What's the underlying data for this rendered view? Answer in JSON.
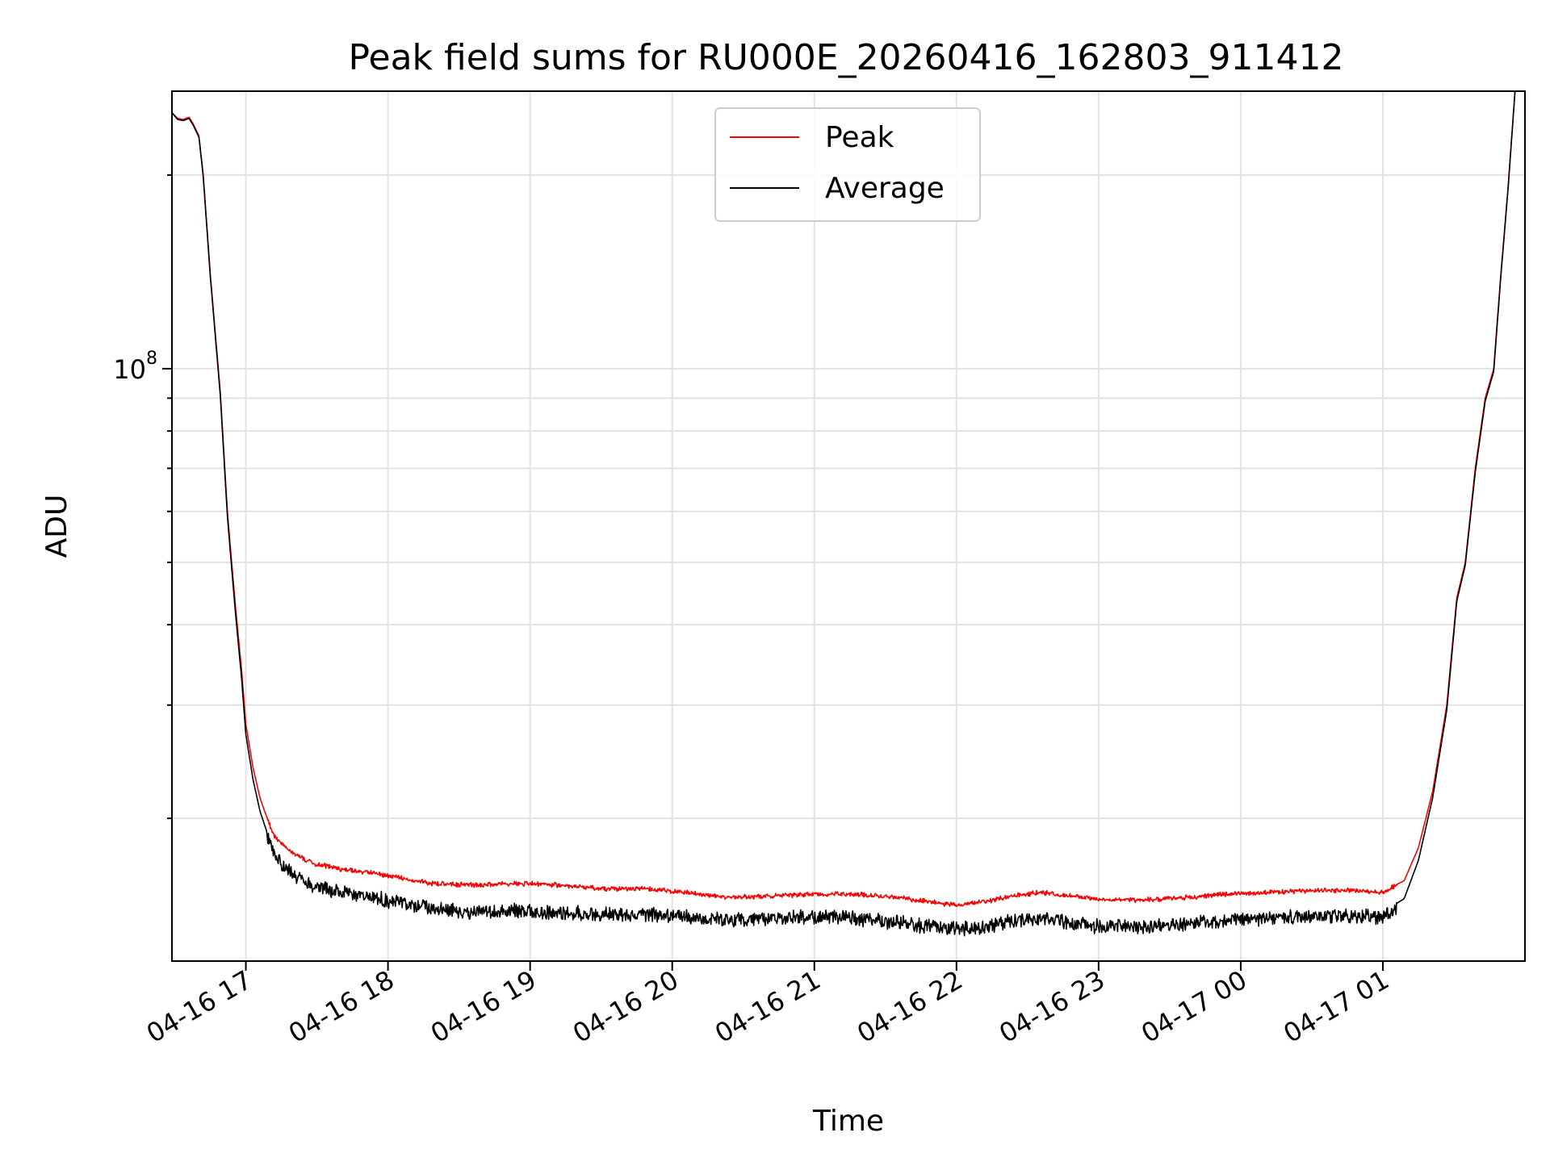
{
  "chart_data": {
    "type": "line",
    "title": "Peak field sums for RU000E_20260416_162803_911412",
    "xlabel": "Time",
    "ylabel": "ADU",
    "yscale": "log",
    "grid": true,
    "grid_minor": true,
    "legend_placement": "top-center",
    "x_tick_labels": [
      "04-16 17",
      "04-16 18",
      "04-16 19",
      "04-16 20",
      "04-16 21",
      "04-16 22",
      "04-16 23",
      "04-17 00",
      "04-17 01"
    ],
    "x_tick_hours": [
      17,
      18,
      19,
      20,
      21,
      22,
      23,
      24,
      25
    ],
    "xlim_hours": [
      16.48,
      26.0
    ],
    "ylim": [
      12000000,
      270000000
    ],
    "y_tick_label": {
      "base": "10",
      "exp": "8",
      "value": 100000000
    },
    "series": [
      {
        "name": "Peak",
        "color": "#ff0000",
        "x_hours": [
          16.48,
          16.52,
          16.56,
          16.6,
          16.63,
          16.67,
          16.7,
          16.75,
          16.82,
          16.87,
          16.9,
          16.93,
          16.97,
          17.0,
          17.05,
          17.1,
          17.15,
          17.2,
          17.3,
          17.4,
          17.5,
          17.7,
          17.9,
          18.1,
          18.3,
          18.6,
          18.9,
          19.2,
          19.5,
          19.8,
          20.1,
          20.4,
          20.7,
          21.0,
          21.3,
          21.6,
          21.8,
          22.0,
          22.2,
          22.4,
          22.6,
          22.8,
          23.0,
          23.3,
          23.6,
          23.9,
          24.2,
          24.5,
          24.8,
          25.0,
          25.15,
          25.25,
          25.35,
          25.45,
          25.52,
          25.58,
          25.65,
          25.72,
          25.78,
          25.83,
          25.88,
          25.93
        ],
        "values": [
          250000000,
          245000000,
          244000000,
          246000000,
          240000000,
          230000000,
          200000000,
          140000000,
          92000000,
          60000000,
          50000000,
          42000000,
          34000000,
          28000000,
          24000000,
          21500000,
          20000000,
          18800000,
          17900000,
          17400000,
          17000000,
          16700000,
          16500000,
          16200000,
          15900000,
          15800000,
          15900000,
          15800000,
          15600000,
          15600000,
          15400000,
          15100000,
          15200000,
          15300000,
          15300000,
          15100000,
          14900000,
          14700000,
          14900000,
          15200000,
          15400000,
          15200000,
          15000000,
          15000000,
          15100000,
          15300000,
          15400000,
          15500000,
          15500000,
          15400000,
          16000000,
          18000000,
          22000000,
          30000000,
          44000000,
          50000000,
          70000000,
          90000000,
          100000000,
          140000000,
          190000000,
          270000000
        ]
      },
      {
        "name": "Average",
        "color": "#000000",
        "x_hours": [
          16.48,
          16.52,
          16.56,
          16.6,
          16.63,
          16.67,
          16.7,
          16.75,
          16.82,
          16.87,
          16.9,
          16.93,
          16.97,
          17.0,
          17.05,
          17.1,
          17.15,
          17.2,
          17.3,
          17.4,
          17.5,
          17.7,
          17.9,
          18.1,
          18.3,
          18.6,
          18.9,
          19.2,
          19.5,
          19.8,
          20.1,
          20.4,
          20.7,
          21.0,
          21.3,
          21.6,
          21.8,
          22.0,
          22.2,
          22.4,
          22.6,
          22.8,
          23.0,
          23.3,
          23.6,
          23.9,
          24.2,
          24.5,
          24.8,
          25.0,
          25.15,
          25.25,
          25.35,
          25.45,
          25.52,
          25.58,
          25.65,
          25.72,
          25.78,
          25.83,
          25.88,
          25.93
        ],
        "values": [
          250000000,
          244000000,
          243000000,
          245000000,
          239000000,
          229000000,
          199000000,
          139000000,
          91000000,
          59000000,
          49000000,
          41000000,
          33000000,
          27000000,
          23000000,
          20500000,
          19000000,
          17800000,
          16800000,
          16300000,
          15900000,
          15600000,
          15300000,
          15000000,
          14700000,
          14500000,
          14600000,
          14500000,
          14400000,
          14400000,
          14300000,
          14100000,
          14200000,
          14300000,
          14200000,
          14000000,
          13800000,
          13700000,
          13800000,
          14100000,
          14200000,
          14000000,
          13800000,
          13800000,
          13900000,
          14100000,
          14200000,
          14300000,
          14300000,
          14300000,
          15000000,
          17200000,
          21500000,
          29500000,
          43500000,
          49500000,
          69000000,
          89000000,
          99000000,
          139000000,
          189000000,
          270000000
        ]
      }
    ]
  }
}
